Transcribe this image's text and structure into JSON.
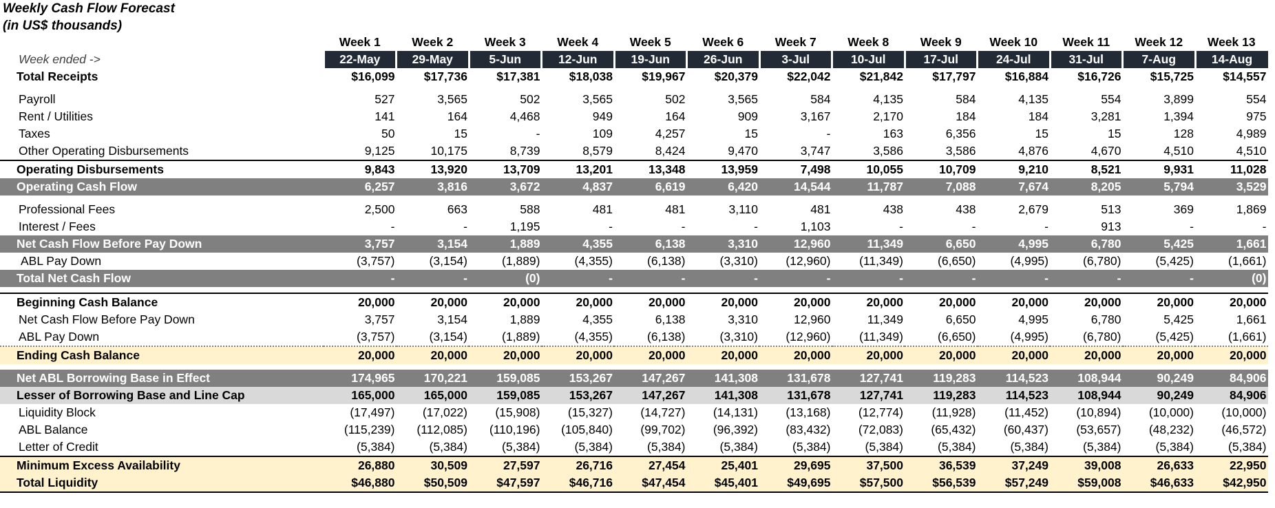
{
  "title": "Weekly Cash Flow Forecast",
  "subtitle": "(in US$ thousands)",
  "week_ended_label": "Week ended ->",
  "weeks": [
    "Week 1",
    "Week 2",
    "Week 3",
    "Week 4",
    "Week 5",
    "Week 6",
    "Week 7",
    "Week 8",
    "Week 9",
    "Week 10",
    "Week 11",
    "Week 12",
    "Week 13"
  ],
  "dates": [
    "22-May",
    "29-May",
    "5-Jun",
    "12-Jun",
    "19-Jun",
    "26-Jun",
    "3-Jul",
    "10-Jul",
    "17-Jul",
    "24-Jul",
    "31-Jul",
    "7-Aug",
    "14-Aug"
  ],
  "colors": {
    "header_dark": "#222a35",
    "band_gray": "#808080",
    "band_light_gray": "#d9d9d9",
    "band_yellow": "#fff2cc"
  },
  "rows": [
    {
      "label": "Total Receipts",
      "style": "bold",
      "values": [
        "$16,099",
        "$17,736",
        "$17,381",
        "$18,038",
        "$19,967",
        "$20,379",
        "$22,042",
        "$21,842",
        "$17,797",
        "$16,884",
        "$16,726",
        "$15,725",
        "$14,557"
      ]
    },
    {
      "label": "Payroll",
      "style": "plain",
      "values": [
        "527",
        "3,565",
        "502",
        "3,565",
        "502",
        "3,565",
        "584",
        "4,135",
        "584",
        "4,135",
        "554",
        "3,899",
        "554"
      ]
    },
    {
      "label": "Rent / Utilities",
      "style": "plain",
      "values": [
        "141",
        "164",
        "4,468",
        "949",
        "164",
        "909",
        "3,167",
        "2,170",
        "184",
        "184",
        "3,281",
        "1,394",
        "975"
      ]
    },
    {
      "label": "Taxes",
      "style": "plain",
      "values": [
        "50",
        "15",
        "-",
        "109",
        "4,257",
        "15",
        "-",
        "163",
        "6,356",
        "15",
        "15",
        "128",
        "4,989"
      ]
    },
    {
      "label": "Other Operating Disbursements",
      "style": "plain",
      "values": [
        "9,125",
        "10,175",
        "8,739",
        "8,579",
        "8,424",
        "9,470",
        "3,747",
        "3,586",
        "3,586",
        "4,876",
        "4,670",
        "4,510",
        "4,510"
      ]
    },
    {
      "label": "Operating Disbursements",
      "style": "bold-top",
      "values": [
        "9,843",
        "13,920",
        "13,709",
        "13,201",
        "13,348",
        "13,959",
        "7,498",
        "10,055",
        "10,709",
        "9,210",
        "8,521",
        "9,931",
        "11,028"
      ]
    },
    {
      "label": "Operating Cash Flow",
      "style": "gray",
      "values": [
        "6,257",
        "3,816",
        "3,672",
        "4,837",
        "6,619",
        "6,420",
        "14,544",
        "11,787",
        "7,088",
        "7,674",
        "8,205",
        "5,794",
        "3,529"
      ]
    },
    {
      "label": "Professional Fees",
      "style": "plain",
      "values": [
        "2,500",
        "663",
        "588",
        "481",
        "481",
        "3,110",
        "481",
        "438",
        "438",
        "2,679",
        "513",
        "369",
        "1,869"
      ]
    },
    {
      "label": "Interest / Fees",
      "style": "plain",
      "values": [
        "-",
        "-",
        "1,195",
        "-",
        "-",
        "-",
        "1,103",
        "-",
        "-",
        "-",
        "913",
        "-",
        "-"
      ]
    },
    {
      "label": "Net Cash Flow Before Pay Down",
      "style": "gray",
      "values": [
        "3,757",
        "3,154",
        "1,889",
        "4,355",
        "6,138",
        "3,310",
        "12,960",
        "11,349",
        "6,650",
        "4,995",
        "6,780",
        "5,425",
        "1,661"
      ]
    },
    {
      "label": "ABL Pay Down",
      "style": "plain-indent",
      "values": [
        "(3,757)",
        "(3,154)",
        "(1,889)",
        "(4,355)",
        "(6,138)",
        "(3,310)",
        "(12,960)",
        "(11,349)",
        "(6,650)",
        "(4,995)",
        "(6,780)",
        "(5,425)",
        "(1,661)"
      ]
    },
    {
      "label": "Total Net Cash Flow",
      "style": "gray",
      "values": [
        "-",
        "-",
        "(0)",
        "-",
        "-",
        "-",
        "-",
        "-",
        "-",
        "-",
        "-",
        "-",
        "(0)"
      ]
    },
    {
      "label": "Beginning Cash Balance",
      "style": "bold-top",
      "values": [
        "20,000",
        "20,000",
        "20,000",
        "20,000",
        "20,000",
        "20,000",
        "20,000",
        "20,000",
        "20,000",
        "20,000",
        "20,000",
        "20,000",
        "20,000"
      ]
    },
    {
      "label": "Net Cash Flow Before Pay Down",
      "style": "plain",
      "values": [
        "3,757",
        "3,154",
        "1,889",
        "4,355",
        "6,138",
        "3,310",
        "12,960",
        "11,349",
        "6,650",
        "4,995",
        "6,780",
        "5,425",
        "1,661"
      ]
    },
    {
      "label": "ABL Pay Down",
      "style": "plain-dotted",
      "values": [
        "(3,757)",
        "(3,154)",
        "(1,889)",
        "(4,355)",
        "(6,138)",
        "(3,310)",
        "(12,960)",
        "(11,349)",
        "(6,650)",
        "(4,995)",
        "(6,780)",
        "(5,425)",
        "(1,661)"
      ]
    },
    {
      "label": "Ending Cash Balance",
      "style": "yellow",
      "values": [
        "20,000",
        "20,000",
        "20,000",
        "20,000",
        "20,000",
        "20,000",
        "20,000",
        "20,000",
        "20,000",
        "20,000",
        "20,000",
        "20,000",
        "20,000"
      ]
    },
    {
      "label": "Net ABL Borrowing Base in Effect",
      "style": "gray",
      "values": [
        "174,965",
        "170,221",
        "159,085",
        "153,267",
        "147,267",
        "141,308",
        "131,678",
        "127,741",
        "119,283",
        "114,523",
        "108,944",
        "90,249",
        "84,906"
      ]
    },
    {
      "label": "Lesser of Borrowing Base and Line Cap",
      "style": "lgray",
      "values": [
        "165,000",
        "165,000",
        "159,085",
        "153,267",
        "147,267",
        "141,308",
        "131,678",
        "127,741",
        "119,283",
        "114,523",
        "108,944",
        "90,249",
        "84,906"
      ]
    },
    {
      "label": "Liquidity Block",
      "style": "plain",
      "values": [
        "(17,497)",
        "(17,022)",
        "(15,908)",
        "(15,327)",
        "(14,727)",
        "(14,131)",
        "(13,168)",
        "(12,774)",
        "(11,928)",
        "(11,452)",
        "(10,894)",
        "(10,000)",
        "(10,000)"
      ]
    },
    {
      "label": "ABL Balance",
      "style": "plain",
      "values": [
        "(115,239)",
        "(112,085)",
        "(110,196)",
        "(105,840)",
        "(99,702)",
        "(96,392)",
        "(83,432)",
        "(72,083)",
        "(65,432)",
        "(60,437)",
        "(53,657)",
        "(48,232)",
        "(46,572)"
      ]
    },
    {
      "label": "Letter of Credit",
      "style": "plain",
      "values": [
        "(5,384)",
        "(5,384)",
        "(5,384)",
        "(5,384)",
        "(5,384)",
        "(5,384)",
        "(5,384)",
        "(5,384)",
        "(5,384)",
        "(5,384)",
        "(5,384)",
        "(5,384)",
        "(5,384)"
      ]
    },
    {
      "label": "Minimum Excess Availability",
      "style": "yellow-top",
      "values": [
        "26,880",
        "30,509",
        "27,597",
        "26,716",
        "27,454",
        "25,401",
        "29,695",
        "37,500",
        "36,539",
        "37,249",
        "39,008",
        "26,633",
        "22,950"
      ]
    },
    {
      "label": "Total Liquidity",
      "style": "yellow-bottom",
      "values": [
        "$46,880",
        "$50,509",
        "$47,597",
        "$46,716",
        "$47,454",
        "$45,401",
        "$49,695",
        "$57,500",
        "$56,539",
        "$57,249",
        "$59,008",
        "$46,633",
        "$42,950"
      ]
    }
  ]
}
